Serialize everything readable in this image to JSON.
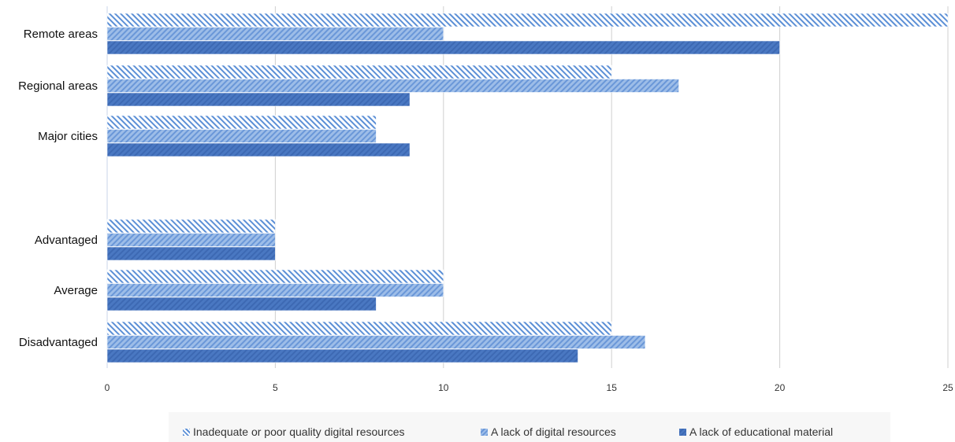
{
  "chart_data": {
    "type": "bar",
    "orientation": "horizontal",
    "categories": [
      "Remote areas",
      "Regional areas",
      "Major cities",
      "Advantaged",
      "Average",
      "Disadvantaged"
    ],
    "series": [
      {
        "name": "Inadequate or poor quality digital resources",
        "values": [
          25,
          15,
          8,
          5,
          10,
          15
        ],
        "color": "#5b8fd6"
      },
      {
        "name": "A lack of digital resources",
        "values": [
          10,
          17,
          8,
          5,
          10,
          16
        ],
        "color": "#7aa3dd"
      },
      {
        "name": "A lack of educational material",
        "values": [
          20,
          9,
          9,
          5,
          8,
          14
        ],
        "color": "#4a78c2"
      }
    ],
    "xlim": [
      0,
      25
    ],
    "xticks": [
      0,
      5,
      10,
      15,
      20,
      25
    ],
    "grid": "vertical",
    "legend": "bottom"
  }
}
